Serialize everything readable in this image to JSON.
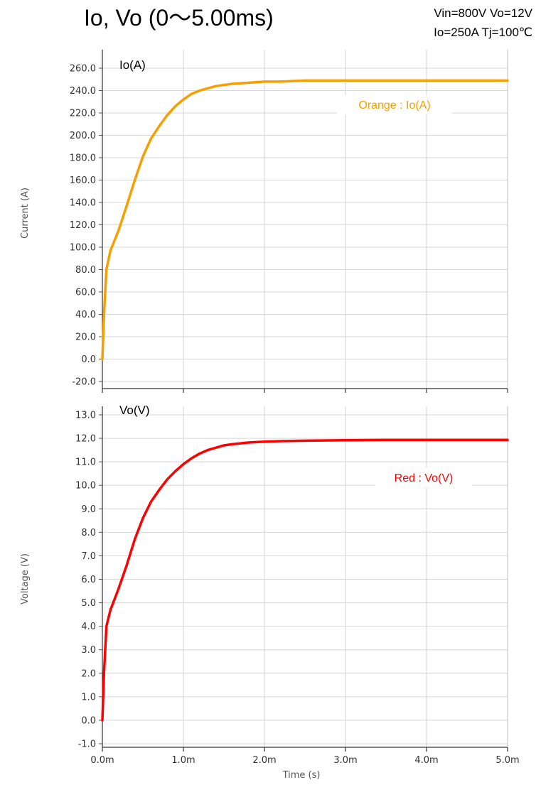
{
  "header": {
    "title": "Io, Vo (0～5.00ms)",
    "conditions_line1": "Vin=800V Vo=12V",
    "conditions_line2": "Io=250A Tj=100℃"
  },
  "chart_data": [
    {
      "type": "line",
      "panel_label": "Io(A)",
      "ylabel": "Current (A)",
      "xlabel": "Time (s)",
      "xlim": [
        0,
        0.005
      ],
      "ylim": [
        -20,
        260
      ],
      "yticks": [
        -20,
        0,
        20,
        40,
        60,
        80,
        100,
        120,
        140,
        160,
        180,
        200,
        220,
        240,
        260
      ],
      "ytick_labels": [
        "-20.0",
        "0.0",
        "20.0",
        "40.0",
        "60.0",
        "80.0",
        "100.0",
        "120.0",
        "140.0",
        "160.0",
        "180.0",
        "200.0",
        "220.0",
        "240.0",
        "260.0"
      ],
      "xticks": [
        0,
        0.001,
        0.002,
        0.003,
        0.004,
        0.005
      ],
      "xtick_labels": [
        "0.0m",
        "1.0m",
        "2.0m",
        "3.0m",
        "4.0m",
        "5.0m"
      ],
      "grid": true,
      "legend_text": "Orange : Io(A)",
      "legend_position": "top-right",
      "series": [
        {
          "color": "#f5a000",
          "x": [
            0,
            2e-05,
            5e-05,
            0.0001,
            0.0002,
            0.0003,
            0.0004,
            0.0005,
            0.0006,
            0.0007,
            0.0008,
            0.0009,
            0.001,
            0.0011,
            0.0012,
            0.0013,
            0.0014,
            0.0015,
            0.0016,
            0.0018,
            0.002,
            0.0022,
            0.0025,
            0.003,
            0.0035,
            0.004,
            0.0045,
            0.005
          ],
          "y": [
            0,
            40,
            80,
            97,
            115,
            137,
            160,
            181,
            197,
            208,
            218,
            226,
            232,
            237,
            240,
            242,
            244,
            245,
            246,
            247,
            248,
            248,
            249,
            249,
            249,
            249,
            249,
            249
          ]
        }
      ]
    },
    {
      "type": "line",
      "panel_label": "Vo(V)",
      "ylabel": "Voltage (V)",
      "xlabel": "Time (s)",
      "xlim": [
        0,
        0.005
      ],
      "ylim": [
        -1,
        13
      ],
      "yticks": [
        -1,
        0,
        1,
        2,
        3,
        4,
        5,
        6,
        7,
        8,
        9,
        10,
        11,
        12,
        13
      ],
      "ytick_labels": [
        "-1.0",
        "0.0",
        "1.0",
        "2.0",
        "3.0",
        "4.0",
        "5.0",
        "6.0",
        "7.0",
        "8.0",
        "9.0",
        "10.0",
        "11.0",
        "12.0",
        "13.0"
      ],
      "xticks": [
        0,
        0.001,
        0.002,
        0.003,
        0.004,
        0.005
      ],
      "xtick_labels": [
        "0.0m",
        "1.0m",
        "2.0m",
        "3.0m",
        "4.0m",
        "5.0m"
      ],
      "grid": true,
      "legend_text": "Red : Vo(V)",
      "legend_position": "top-right",
      "series": [
        {
          "color": "#ff0000",
          "x": [
            0,
            2e-05,
            5e-05,
            0.0001,
            0.0002,
            0.0003,
            0.0004,
            0.0005,
            0.0006,
            0.0007,
            0.0008,
            0.0009,
            0.001,
            0.0011,
            0.0012,
            0.0013,
            0.0014,
            0.0015,
            0.0016,
            0.0018,
            0.002,
            0.0022,
            0.0025,
            0.003,
            0.0035,
            0.004,
            0.0045,
            0.005
          ],
          "y": [
            0,
            2,
            4,
            4.7,
            5.6,
            6.6,
            7.7,
            8.6,
            9.3,
            9.8,
            10.25,
            10.6,
            10.9,
            11.15,
            11.35,
            11.5,
            11.6,
            11.7,
            11.75,
            11.82,
            11.86,
            11.88,
            11.9,
            11.92,
            11.93,
            11.93,
            11.93,
            11.93
          ]
        }
      ]
    }
  ]
}
